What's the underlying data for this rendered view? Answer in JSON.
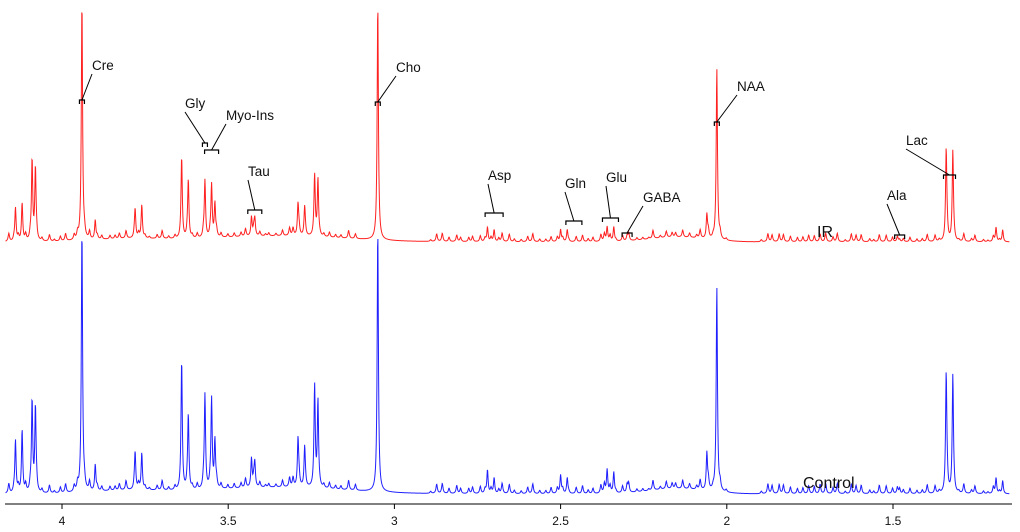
{
  "chart_data": {
    "type": "line",
    "title": "",
    "xlabel": "",
    "ylabel": "",
    "x_axis": {
      "reversed": true,
      "xlim": [
        4.17,
        1.15
      ],
      "ticks": [
        "4",
        "3.5",
        "3",
        "2.5",
        "2",
        "1.5"
      ]
    },
    "grid": false,
    "legend": "none",
    "series": [
      {
        "name": "IR",
        "color": "#ff2020",
        "peaks": [
          {
            "ppm": 4.14,
            "height": 0.14
          },
          {
            "ppm": 4.12,
            "height": 0.16
          },
          {
            "ppm": 4.09,
            "height": 0.34
          },
          {
            "ppm": 4.08,
            "height": 0.3
          },
          {
            "ppm": 3.94,
            "height": 1.0
          },
          {
            "ppm": 3.9,
            "height": 0.08
          },
          {
            "ppm": 3.78,
            "height": 0.12
          },
          {
            "ppm": 3.76,
            "height": 0.14
          },
          {
            "ppm": 3.64,
            "height": 0.33
          },
          {
            "ppm": 3.62,
            "height": 0.24
          },
          {
            "ppm": 3.57,
            "height": 0.24
          },
          {
            "ppm": 3.55,
            "height": 0.22
          },
          {
            "ppm": 3.54,
            "height": 0.14
          },
          {
            "ppm": 3.43,
            "height": 0.08
          },
          {
            "ppm": 3.42,
            "height": 0.07
          },
          {
            "ppm": 3.29,
            "height": 0.13
          },
          {
            "ppm": 3.27,
            "height": 0.12
          },
          {
            "ppm": 3.24,
            "height": 0.25
          },
          {
            "ppm": 3.23,
            "height": 0.24
          },
          {
            "ppm": 3.05,
            "height": 0.99
          },
          {
            "ppm": 2.72,
            "height": 0.06
          },
          {
            "ppm": 2.7,
            "height": 0.05
          },
          {
            "ppm": 2.5,
            "height": 0.05
          },
          {
            "ppm": 2.48,
            "height": 0.05
          },
          {
            "ppm": 2.36,
            "height": 0.06
          },
          {
            "ppm": 2.34,
            "height": 0.06
          },
          {
            "ppm": 2.3,
            "height": 0.02
          },
          {
            "ppm": 2.06,
            "height": 0.1
          },
          {
            "ppm": 2.03,
            "height": 0.72
          },
          {
            "ppm": 1.48,
            "height": 0.01
          },
          {
            "ppm": 1.34,
            "height": 0.38
          },
          {
            "ppm": 1.32,
            "height": 0.38
          },
          {
            "ppm": 1.19,
            "height": 0.06
          },
          {
            "ppm": 1.17,
            "height": 0.05
          }
        ]
      },
      {
        "name": "Control",
        "color": "#2020ff",
        "peaks": [
          {
            "ppm": 4.14,
            "height": 0.2
          },
          {
            "ppm": 4.12,
            "height": 0.24
          },
          {
            "ppm": 4.09,
            "height": 0.35
          },
          {
            "ppm": 4.08,
            "height": 0.32
          },
          {
            "ppm": 3.94,
            "height": 1.0
          },
          {
            "ppm": 3.9,
            "height": 0.1
          },
          {
            "ppm": 3.78,
            "height": 0.14
          },
          {
            "ppm": 3.76,
            "height": 0.14
          },
          {
            "ppm": 3.64,
            "height": 0.48
          },
          {
            "ppm": 3.62,
            "height": 0.28
          },
          {
            "ppm": 3.57,
            "height": 0.36
          },
          {
            "ppm": 3.55,
            "height": 0.34
          },
          {
            "ppm": 3.54,
            "height": 0.18
          },
          {
            "ppm": 3.43,
            "height": 0.11
          },
          {
            "ppm": 3.42,
            "height": 0.09
          },
          {
            "ppm": 3.29,
            "height": 0.18
          },
          {
            "ppm": 3.27,
            "height": 0.15
          },
          {
            "ppm": 3.24,
            "height": 0.38
          },
          {
            "ppm": 3.23,
            "height": 0.33
          },
          {
            "ppm": 3.05,
            "height": 1.0
          },
          {
            "ppm": 2.72,
            "height": 0.09
          },
          {
            "ppm": 2.7,
            "height": 0.06
          },
          {
            "ppm": 2.5,
            "height": 0.07
          },
          {
            "ppm": 2.48,
            "height": 0.06
          },
          {
            "ppm": 2.36,
            "height": 0.09
          },
          {
            "ppm": 2.34,
            "height": 0.08
          },
          {
            "ppm": 2.3,
            "height": 0.03
          },
          {
            "ppm": 2.06,
            "height": 0.14
          },
          {
            "ppm": 2.03,
            "height": 0.78
          },
          {
            "ppm": 1.48,
            "height": 0.02
          },
          {
            "ppm": 1.34,
            "height": 0.45
          },
          {
            "ppm": 1.32,
            "height": 0.45
          },
          {
            "ppm": 1.19,
            "height": 0.06
          },
          {
            "ppm": 1.17,
            "height": 0.05
          }
        ]
      }
    ],
    "annotations": [
      {
        "label": "Cre",
        "ppm": 3.94
      },
      {
        "label": "Gly",
        "ppm": 3.57
      },
      {
        "label": "Myo-Ins",
        "ppm": 3.55
      },
      {
        "label": "Tau",
        "ppm": 3.42
      },
      {
        "label": "Cho",
        "ppm": 3.05
      },
      {
        "label": "Asp",
        "ppm": 2.7
      },
      {
        "label": "Gln",
        "ppm": 2.46
      },
      {
        "label": "Glu",
        "ppm": 2.35
      },
      {
        "label": "GABA",
        "ppm": 2.3
      },
      {
        "label": "NAA",
        "ppm": 2.03
      },
      {
        "label": "Ala",
        "ppm": 1.48
      },
      {
        "label": "Lac",
        "ppm": 1.33
      }
    ],
    "trace_labels": [
      "IR",
      "Control"
    ]
  }
}
